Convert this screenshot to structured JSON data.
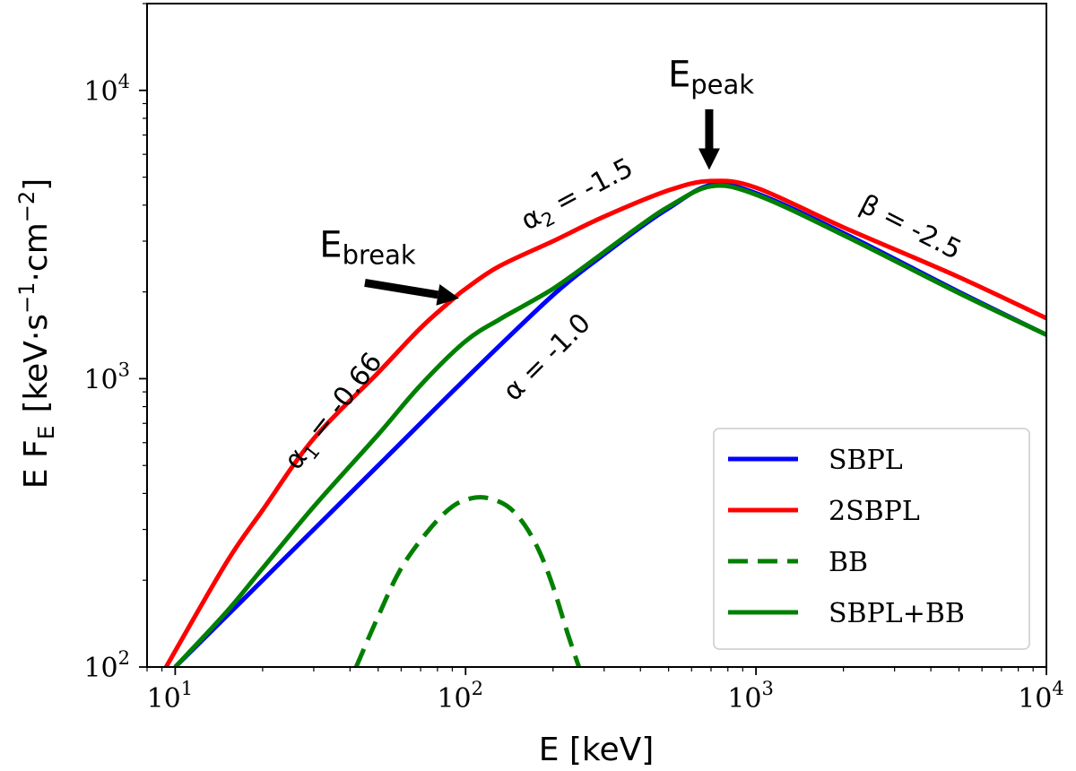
{
  "chart_data": {
    "type": "line",
    "x_scale": "log",
    "y_scale": "log",
    "xlim": [
      8,
      10000
    ],
    "ylim": [
      100,
      20000
    ],
    "xlabel": "E [keV]",
    "ylabel": {
      "main": "E F",
      "sub": "E",
      "units_open": "[keV·s",
      "exp1": "−1",
      "mid": "·cm",
      "exp2": "−2",
      "units_close": "]"
    },
    "x_ticks": [
      {
        "value": 10,
        "base": "10",
        "exp": "1"
      },
      {
        "value": 100,
        "base": "10",
        "exp": "2"
      },
      {
        "value": 1000,
        "base": "10",
        "exp": "3"
      },
      {
        "value": 10000,
        "base": "10",
        "exp": "4"
      }
    ],
    "y_ticks": [
      {
        "value": 100,
        "base": "10",
        "exp": "2"
      },
      {
        "value": 1000,
        "base": "10",
        "exp": "3"
      },
      {
        "value": 10000,
        "base": "10",
        "exp": "4"
      }
    ],
    "series": [
      {
        "name": "SBPL",
        "color": "#0000ff",
        "dash": "solid",
        "x": [
          10,
          20,
          50,
          100,
          200,
          300,
          400,
          500,
          700,
          1000,
          2000,
          5000,
          10000
        ],
        "y": [
          100,
          200,
          500,
          1000,
          1950,
          2700,
          3350,
          3900,
          4700,
          4400,
          3200,
          2000,
          1420
        ]
      },
      {
        "name": "2SBPL",
        "color": "#ff0000",
        "dash": "solid",
        "x": [
          9.3,
          15,
          20,
          30,
          50,
          70,
          90,
          100,
          130,
          200,
          300,
          500,
          700,
          1000,
          2000,
          5000,
          10000
        ],
        "y": [
          100,
          230,
          350,
          620,
          1050,
          1500,
          1880,
          2050,
          2450,
          3000,
          3650,
          4500,
          4850,
          4600,
          3350,
          2250,
          1620
        ]
      },
      {
        "name": "BB",
        "color": "#008000",
        "dash": "dashed",
        "x": [
          42,
          50,
          60,
          75,
          90,
          105,
          120,
          140,
          160,
          180,
          200,
          225,
          250
        ],
        "y": [
          100,
          150,
          220,
          300,
          360,
          385,
          385,
          360,
          310,
          250,
          190,
          130,
          95
        ]
      },
      {
        "name": "SBPL+BB",
        "color": "#008000",
        "dash": "solid",
        "x": [
          10,
          15,
          20,
          30,
          50,
          70,
          100,
          130,
          160,
          200,
          250,
          300,
          400,
          500,
          700,
          1000,
          2000,
          5000,
          10000
        ],
        "y": [
          100,
          155,
          220,
          360,
          640,
          950,
          1350,
          1600,
          1800,
          2050,
          2400,
          2750,
          3400,
          3950,
          4650,
          4350,
          3150,
          1980,
          1420
        ]
      }
    ],
    "legend": {
      "location": "lower-right",
      "entries": [
        "SBPL",
        "2SBPL",
        "BB",
        "SBPL+BB"
      ]
    },
    "annotations": {
      "e_break": {
        "base": "E",
        "sub": "break",
        "x": 46,
        "y": 2650
      },
      "e_peak": {
        "base": "E",
        "sub": "peak",
        "x": 700,
        "y": 10300
      },
      "alpha1": {
        "greek": "α",
        "sub": "1",
        "rest": " = -0.66",
        "x": 37,
        "y": 740,
        "angle": -52
      },
      "alpha2": {
        "greek": "α",
        "sub": "2",
        "rest": " = -1.5",
        "x": 250,
        "y": 4100,
        "angle": -28
      },
      "alpha": {
        "greek": "α",
        "rest": " = -1.0",
        "x": 200,
        "y": 1130,
        "angle": -45
      },
      "beta": {
        "greek": "β",
        "rest": " = -2.5",
        "x": 3300,
        "y": 3150,
        "angle": 27
      }
    },
    "arrows": [
      {
        "name": "break-arrow",
        "from": [
          45,
          2150
        ],
        "to": [
          95,
          1900
        ]
      },
      {
        "name": "peak-arrow",
        "from": [
          690,
          8600
        ],
        "to": [
          690,
          5300
        ]
      }
    ]
  }
}
